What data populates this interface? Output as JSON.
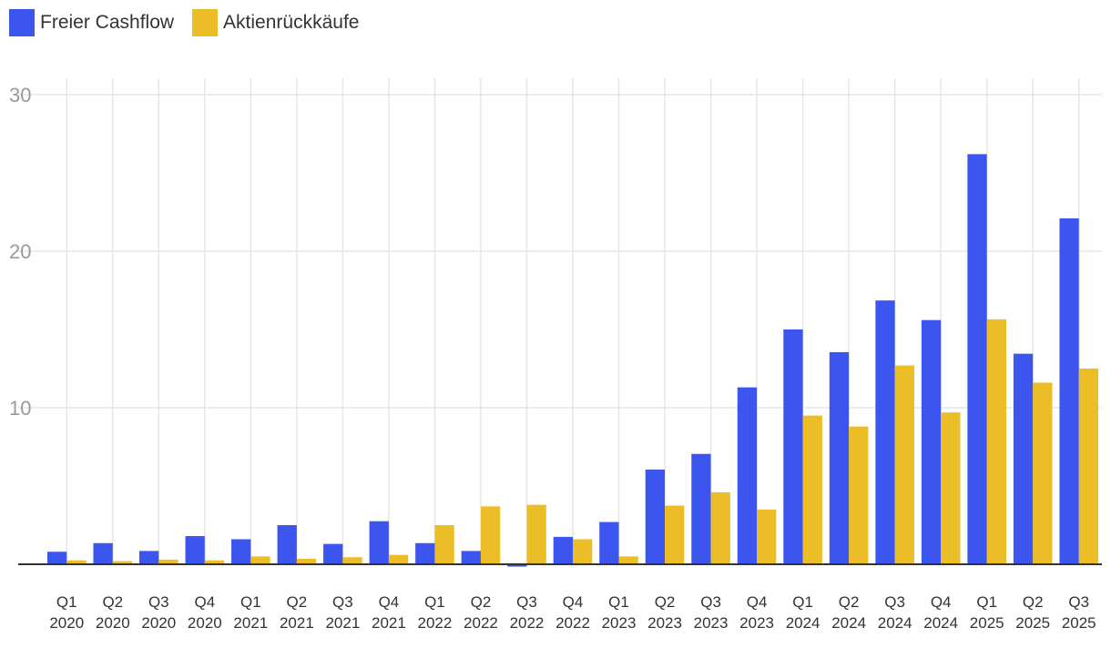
{
  "colors": {
    "fcf": "#3c55ee",
    "buyback": "#ebbd27",
    "grid": "#e6e6e6",
    "axis": "#333333"
  },
  "legend": {
    "fcf_label": "Freier Cashflow",
    "buyback_label": "Aktienrückkäufe"
  },
  "chart_data": {
    "type": "bar",
    "categories": [
      [
        "Q1",
        "2020"
      ],
      [
        "Q2",
        "2020"
      ],
      [
        "Q3",
        "2020"
      ],
      [
        "Q4",
        "2020"
      ],
      [
        "Q1",
        "2021"
      ],
      [
        "Q2",
        "2021"
      ],
      [
        "Q3",
        "2021"
      ],
      [
        "Q4",
        "2021"
      ],
      [
        "Q1",
        "2022"
      ],
      [
        "Q2",
        "2022"
      ],
      [
        "Q3",
        "2022"
      ],
      [
        "Q4",
        "2022"
      ],
      [
        "Q1",
        "2023"
      ],
      [
        "Q2",
        "2023"
      ],
      [
        "Q3",
        "2023"
      ],
      [
        "Q4",
        "2023"
      ],
      [
        "Q1",
        "2024"
      ],
      [
        "Q2",
        "2024"
      ],
      [
        "Q3",
        "2024"
      ],
      [
        "Q4",
        "2024"
      ],
      [
        "Q1",
        "2025"
      ],
      [
        "Q2",
        "2025"
      ],
      [
        "Q3",
        "2025"
      ]
    ],
    "series": [
      {
        "name": "Freier Cashflow",
        "values": [
          0.8,
          1.35,
          0.85,
          1.8,
          1.6,
          2.5,
          1.3,
          2.75,
          1.35,
          0.85,
          -0.15,
          1.75,
          2.7,
          6.05,
          7.05,
          11.3,
          15.0,
          13.55,
          16.85,
          15.6,
          26.2,
          13.45,
          22.1
        ]
      },
      {
        "name": "Aktienrückkäufe",
        "values": [
          0.25,
          0.2,
          0.3,
          0.25,
          0.5,
          0.35,
          0.45,
          0.6,
          2.5,
          3.7,
          3.8,
          1.6,
          0.5,
          3.75,
          4.6,
          3.5,
          9.5,
          8.8,
          12.7,
          9.7,
          15.65,
          11.6,
          12.5
        ]
      }
    ],
    "yticks": [
      10,
      20,
      30
    ],
    "ylim": [
      -0.5,
      30
    ],
    "grid": true,
    "legend_position": "top-left"
  }
}
